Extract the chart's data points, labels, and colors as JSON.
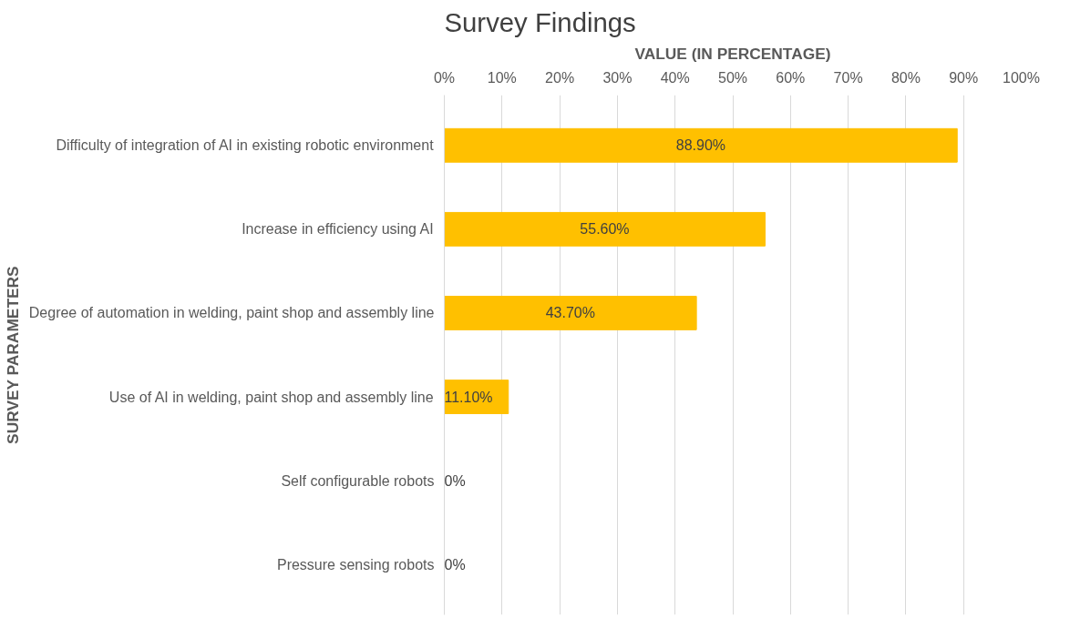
{
  "chart_data": {
    "type": "bar",
    "orientation": "horizontal",
    "title": "Survey Findings",
    "xlabel": "VALUE (IN PERCENTAGE)",
    "ylabel": "SURVEY PARAMETERS",
    "categories": [
      "Difficulty of integration of AI in existing robotic environment",
      "Increase in efficiency using AI",
      "Degree of automation in welding, paint shop and assembly line",
      "Use of AI in welding, paint shop and assembly line",
      "Self configurable robots",
      "Pressure sensing robots"
    ],
    "values": [
      88.9,
      55.6,
      43.7,
      11.1,
      0,
      0
    ],
    "value_labels": [
      "88.90%",
      "55.60%",
      "43.70%",
      "11.10%",
      "0%",
      "0%"
    ],
    "color": "#ffc000",
    "xlim": [
      0,
      100
    ],
    "xticks": [
      {
        "value": 0,
        "label": "0%"
      },
      {
        "value": 10,
        "label": "10%"
      },
      {
        "value": 20,
        "label": "20%"
      },
      {
        "value": 30,
        "label": "30%"
      },
      {
        "value": 40,
        "label": "40%"
      },
      {
        "value": 50,
        "label": "50%"
      },
      {
        "value": 60,
        "label": "60%"
      },
      {
        "value": 70,
        "label": "70%"
      },
      {
        "value": 80,
        "label": "80%"
      },
      {
        "value": 90,
        "label": "90%"
      },
      {
        "value": 100,
        "label": "100%"
      }
    ],
    "grid": "x"
  }
}
